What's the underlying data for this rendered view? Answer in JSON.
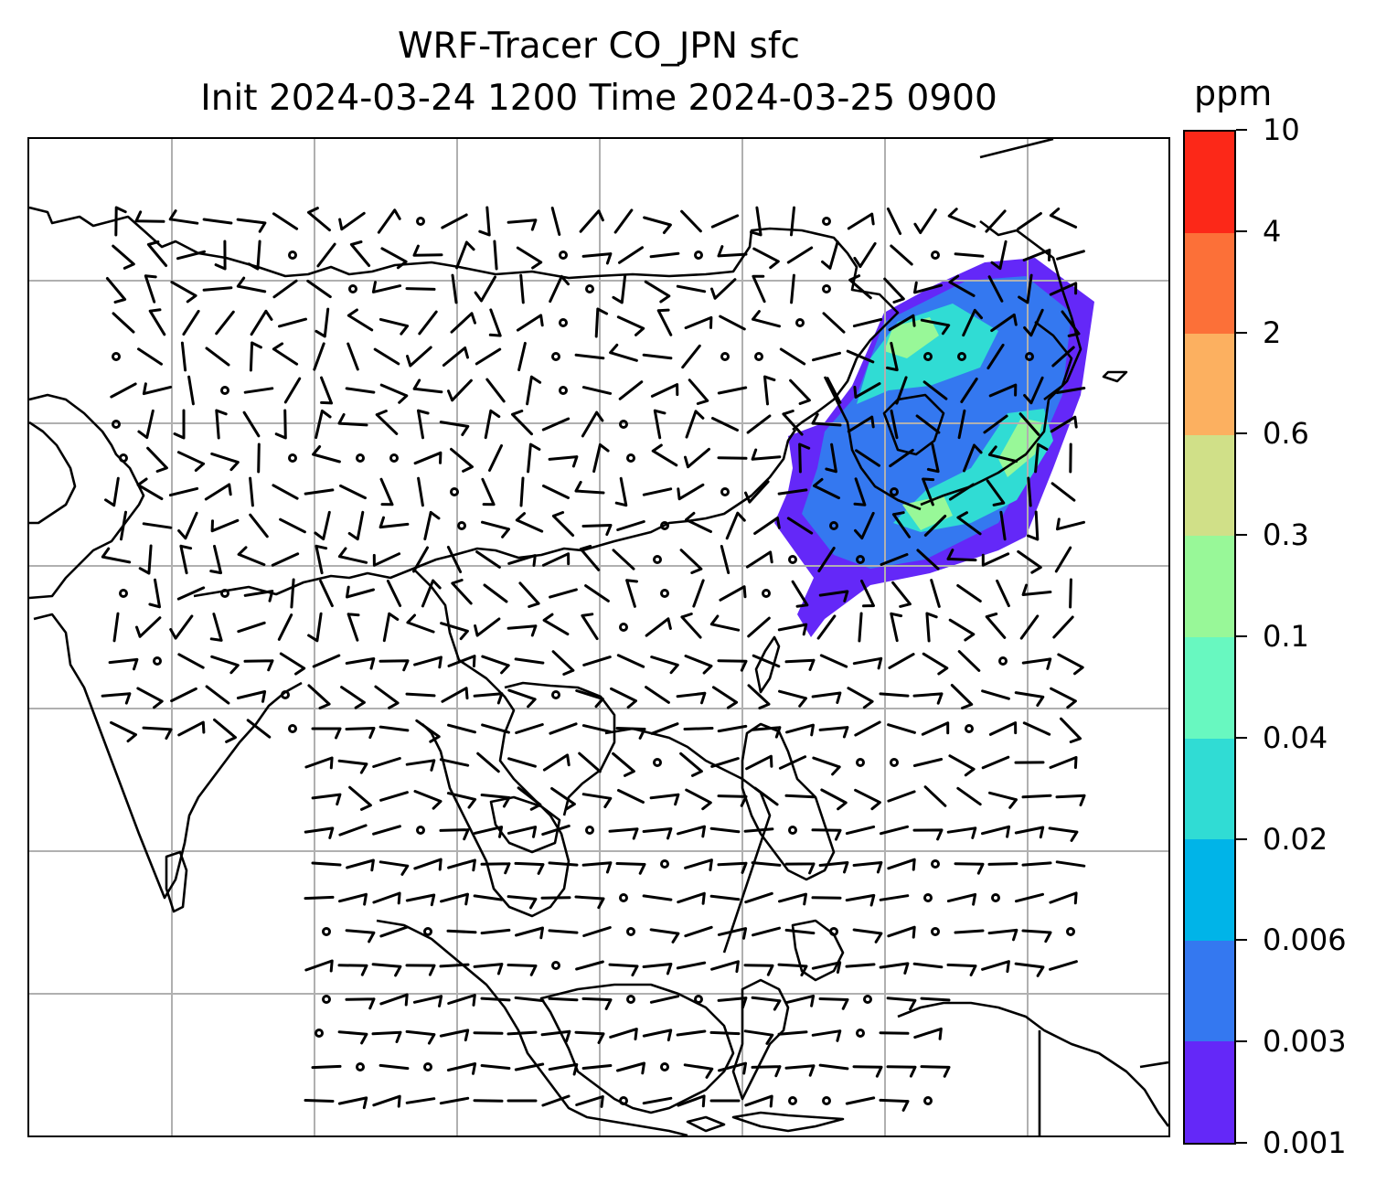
{
  "title_line1": "WRF-Tracer CO_JPN sfc",
  "title_line2": "Init 2024-03-24 1200 Time 2024-03-25 0900",
  "colorbar": {
    "unit": "ppm",
    "levels": [
      "0.001",
      "0.003",
      "0.006",
      "0.02",
      "0.04",
      "0.1",
      "0.3",
      "0.6",
      "2",
      "4",
      "10"
    ],
    "colors": [
      "#6428f8",
      "#3478f0",
      "#00b4e8",
      "#30dcd4",
      "#68f8c0",
      "#98f898",
      "#d0e088",
      "#fcb060",
      "#fc7038",
      "#fc2818"
    ]
  },
  "map": {
    "gridline_color": "#b0b0b0",
    "coastline_color": "#000000",
    "plume_colors": {
      "outer": "#6428f8",
      "mid": "#3478f0",
      "inner": "#30dcd4",
      "core": "#98f898"
    }
  }
}
